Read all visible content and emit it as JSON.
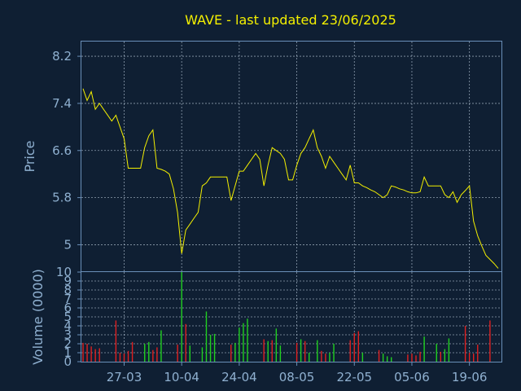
{
  "chart_data": [
    {
      "type": "line",
      "title": "WAVE - last updated 23/06/2025",
      "ylabel": "Price",
      "ylim": [
        4.55,
        8.45
      ],
      "yticks": [
        5,
        5.8,
        6.6,
        7.4,
        8.2
      ],
      "grid": true,
      "color": "#f4f000",
      "y": [
        7.65,
        7.45,
        7.6,
        7.3,
        7.4,
        7.3,
        7.2,
        7.1,
        7.2,
        7.0,
        6.8,
        6.3,
        6.3,
        6.3,
        6.3,
        6.65,
        6.85,
        6.95,
        6.3,
        6.28,
        6.25,
        6.2,
        5.95,
        5.55,
        4.85,
        5.25,
        5.35,
        5.45,
        5.55,
        6.0,
        6.05,
        6.15,
        6.15,
        6.15,
        6.15,
        6.15,
        5.75,
        6.0,
        6.25,
        6.25,
        6.35,
        6.45,
        6.55,
        6.45,
        6.0,
        6.35,
        6.65,
        6.6,
        6.55,
        6.45,
        6.1,
        6.1,
        6.35,
        6.55,
        6.65,
        6.8,
        6.95,
        6.65,
        6.5,
        6.3,
        6.5,
        6.4,
        6.3,
        6.2,
        6.1,
        6.35,
        6.05,
        6.05,
        6.0,
        5.97,
        5.93,
        5.9,
        5.85,
        5.8,
        5.85,
        6.0,
        5.98,
        5.95,
        5.93,
        5.9,
        5.88,
        5.88,
        5.9,
        6.15,
        6.0,
        6.0,
        6.0,
        6.0,
        5.85,
        5.8,
        5.9,
        5.72,
        5.85,
        5.92,
        6.0,
        5.4,
        5.15,
        4.98,
        4.82,
        4.75,
        4.68,
        4.6
      ]
    },
    {
      "type": "bar",
      "ylabel": "Volume (0000)",
      "ylim": [
        0,
        10
      ],
      "yticks": [
        0,
        1,
        2,
        3,
        4,
        5,
        6,
        7,
        8,
        9,
        10
      ],
      "x_tick_labels": [
        "27-03",
        "10-04",
        "24-04",
        "08-05",
        "22-05",
        "05-06",
        "19-06"
      ],
      "x_tick_index": [
        10,
        24,
        38,
        52,
        66,
        80,
        94
      ],
      "up_color": "#20d020",
      "down_color": "#e02020",
      "series": [
        {
          "values": [
            2.1,
            2.0,
            1.7,
            1.4,
            1.5,
            0,
            0,
            0,
            4.6,
            1.0,
            0.9,
            1.2,
            2.2,
            0,
            0,
            2.0,
            2.2,
            1.3,
            1.6,
            3.5,
            0,
            0,
            0,
            1.9,
            10.0,
            4.2,
            1.8,
            0,
            0,
            1.6,
            5.6,
            3.0,
            3.1,
            0,
            0,
            0,
            1.9,
            2.1,
            3.8,
            4.3,
            4.8,
            0,
            0,
            0,
            2.5,
            2.3,
            2.4,
            3.7,
            1.8,
            0,
            0,
            0,
            2.1,
            2.5,
            2.3,
            1.0,
            0,
            2.4,
            1.2,
            0.9,
            1.0,
            2.0,
            0,
            0,
            0,
            2.4,
            3.2,
            3.4,
            1.0,
            0,
            0,
            0,
            1.3,
            0.9,
            0.6,
            0.5,
            0,
            0,
            0,
            0.8,
            0.9,
            0.7,
            1.1,
            2.8,
            0,
            0,
            2.0,
            1.1,
            1.4,
            2.6,
            0,
            0,
            0,
            4.0,
            1.0,
            0.9,
            1.9,
            0,
            0,
            4.6,
            0
          ],
          "direction": [
            -1,
            -1,
            -1,
            -1,
            -1,
            0,
            0,
            0,
            -1,
            -1,
            -1,
            -1,
            -1,
            0,
            0,
            1,
            1,
            -1,
            -1,
            1,
            0,
            0,
            0,
            -1,
            1,
            -1,
            1,
            0,
            0,
            1,
            1,
            1,
            1,
            0,
            0,
            0,
            -1,
            1,
            1,
            1,
            1,
            0,
            0,
            0,
            -1,
            1,
            -1,
            1,
            1,
            0,
            0,
            0,
            -1,
            1,
            -1,
            1,
            0,
            1,
            -1,
            -1,
            1,
            1,
            0,
            0,
            0,
            -1,
            -1,
            -1,
            1,
            0,
            0,
            0,
            -1,
            1,
            1,
            1,
            0,
            0,
            0,
            -1,
            -1,
            -1,
            -1,
            1,
            0,
            0,
            1,
            -1,
            1,
            1,
            0,
            0,
            0,
            -1,
            -1,
            -1,
            -1,
            0,
            0,
            -1,
            0
          ]
        }
      ]
    }
  ]
}
